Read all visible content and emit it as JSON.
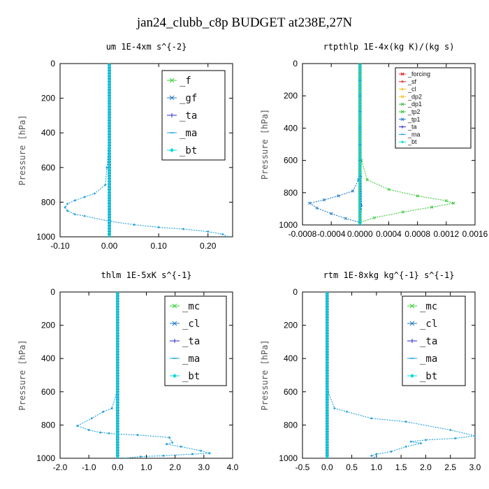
{
  "figure_title": "jan24_clubb_c8p  BUDGET at238E,27N",
  "chart_data": [
    {
      "type": "line",
      "title": "um   1E-4xm s^{-2}",
      "ylabel": "Pressure [hPa]",
      "xlim": [
        -0.1,
        0.25
      ],
      "ylim": [
        1000,
        0
      ],
      "xticks": [
        -0.1,
        0.0,
        0.1,
        0.2
      ],
      "xtick_labels": [
        "-0.10",
        "0.00",
        "0.10",
        "0.20"
      ],
      "yticks": [
        0,
        200,
        400,
        600,
        800,
        1000
      ],
      "legend": {
        "placement": "top-right",
        "small": false
      },
      "series": [
        {
          "name": "_f",
          "color": "#3cd23c",
          "marker": "x",
          "x": [
            0,
            0,
            0,
            0,
            0,
            0,
            0,
            0,
            0,
            0,
            0
          ],
          "y": [
            0,
            100,
            200,
            300,
            400,
            500,
            600,
            700,
            800,
            900,
            1000
          ]
        },
        {
          "name": "_gf",
          "color": "#1e78c8",
          "marker": "x",
          "x": [
            0,
            0,
            0,
            0,
            0,
            0,
            0,
            0,
            0,
            0,
            0
          ],
          "y": [
            0,
            100,
            200,
            300,
            400,
            500,
            600,
            700,
            800,
            900,
            1000
          ]
        },
        {
          "name": "_ta",
          "color": "#2828d2",
          "marker": "+",
          "x": [
            0,
            0,
            0,
            0,
            0,
            0,
            0,
            0,
            0,
            0,
            0
          ],
          "y": [
            0,
            100,
            200,
            300,
            400,
            500,
            600,
            700,
            800,
            900,
            1000
          ]
        },
        {
          "name": "_ma",
          "color": "#1ea0dc",
          "marker": "-",
          "x": [
            0,
            0,
            0,
            0,
            0,
            -0.002,
            -0.005,
            -0.008,
            -0.03,
            -0.05,
            -0.07,
            -0.085,
            -0.09,
            -0.085,
            -0.07,
            -0.05,
            0.0,
            0.05,
            0.1,
            0.15,
            0.2,
            0.23,
            0.24
          ],
          "y": [
            0,
            100,
            200,
            300,
            400,
            500,
            600,
            700,
            750,
            770,
            790,
            810,
            830,
            850,
            870,
            880,
            910,
            930,
            945,
            955,
            970,
            985,
            1000
          ]
        },
        {
          "name": "_bt",
          "color": "#00dcdc",
          "marker": "diamond",
          "x": [
            0,
            0,
            0,
            0,
            0,
            0,
            0,
            0,
            0,
            0,
            0
          ],
          "y": [
            0,
            100,
            200,
            300,
            400,
            500,
            600,
            700,
            800,
            900,
            1000
          ]
        }
      ]
    },
    {
      "type": "line",
      "title": "rtpthlp   1E-4x(kg K)/(kg s)",
      "ylabel": "Pressure [hPa]",
      "xlim": [
        -0.0008,
        0.0016
      ],
      "ylim": [
        1000,
        0
      ],
      "xticks": [
        -0.0008,
        -0.0004,
        0.0,
        0.0004,
        0.0008,
        0.0012,
        0.0016
      ],
      "xtick_labels": [
        "-0.0008",
        "-0.0004",
        "0.0000",
        "0.0004",
        "0.0008",
        "0.0012",
        "0.0016"
      ],
      "yticks": [
        0,
        200,
        400,
        600,
        800,
        1000
      ],
      "legend": {
        "placement": "top-right",
        "small": true
      },
      "series": [
        {
          "name": "_forcing",
          "color": "#e02020",
          "marker": "x",
          "x": [
            0,
            0,
            0,
            0,
            0,
            0,
            0,
            0,
            0,
            0,
            0
          ],
          "y": [
            0,
            100,
            200,
            300,
            400,
            500,
            600,
            700,
            800,
            900,
            1000
          ]
        },
        {
          "name": "_sf",
          "color": "#e02020",
          "marker": "+",
          "x": [
            0,
            0,
            0,
            0,
            0,
            0,
            0,
            0,
            0,
            0,
            0
          ],
          "y": [
            0,
            100,
            200,
            300,
            400,
            500,
            600,
            700,
            800,
            900,
            1000
          ]
        },
        {
          "name": "_cl",
          "color": "#f0b400",
          "marker": "+",
          "x": [
            0,
            0,
            0,
            0,
            0,
            0,
            0,
            0,
            0,
            0,
            0
          ],
          "y": [
            0,
            100,
            200,
            300,
            400,
            500,
            600,
            700,
            800,
            900,
            1000
          ]
        },
        {
          "name": "_dp2",
          "color": "#f0c83c",
          "marker": "x",
          "x": [
            0,
            0,
            0,
            0,
            0,
            0,
            0,
            0,
            0,
            0,
            0
          ],
          "y": [
            0,
            100,
            200,
            300,
            400,
            500,
            600,
            700,
            800,
            900,
            1000
          ]
        },
        {
          "name": "_dp1",
          "color": "#50b450",
          "marker": "x",
          "x": [
            0,
            0,
            0,
            0,
            0,
            0,
            0,
            0,
            0,
            0,
            0
          ],
          "y": [
            0,
            100,
            200,
            300,
            400,
            500,
            600,
            700,
            800,
            900,
            1000
          ]
        },
        {
          "name": "_tp2",
          "color": "#3cc83c",
          "marker": "x",
          "x": [
            0,
            0,
            0,
            0,
            0,
            0,
            2e-05,
            0.0001,
            0.0004,
            0.0008,
            0.0012,
            0.0013,
            0.001,
            0.0006,
            0.0002,
            0.0
          ],
          "y": [
            0,
            100,
            200,
            300,
            400,
            500,
            600,
            720,
            780,
            820,
            850,
            865,
            890,
            920,
            955,
            985
          ]
        },
        {
          "name": "_tp1",
          "color": "#1e78c8",
          "marker": "x",
          "x": [
            0,
            0,
            0,
            0,
            0,
            0,
            0,
            -2e-05,
            -0.0001,
            -0.0003,
            -0.0005,
            -0.0007,
            -0.0006,
            -0.0004,
            -0.0002,
            0.0
          ],
          "y": [
            0,
            100,
            200,
            300,
            400,
            500,
            600,
            720,
            790,
            820,
            845,
            865,
            895,
            930,
            960,
            985
          ]
        },
        {
          "name": "_ta",
          "color": "#2828d2",
          "marker": "+",
          "x": [
            0,
            0,
            0,
            0,
            0,
            0,
            0,
            1e-05,
            2e-05,
            1e-05,
            0.0
          ],
          "y": [
            0,
            100,
            200,
            300,
            400,
            500,
            600,
            700,
            880,
            900,
            1000
          ]
        },
        {
          "name": "_ma",
          "color": "#1ea0dc",
          "marker": "-",
          "x": [
            0,
            0,
            0,
            0,
            0,
            0,
            0,
            0,
            0,
            0,
            0
          ],
          "y": [
            0,
            100,
            200,
            300,
            400,
            500,
            600,
            700,
            800,
            900,
            1000
          ]
        },
        {
          "name": "_bt",
          "color": "#00dcdc",
          "marker": "diamond",
          "x": [
            0,
            0,
            0,
            0,
            0,
            0,
            0,
            0,
            0,
            0,
            0
          ],
          "y": [
            0,
            100,
            200,
            300,
            400,
            500,
            600,
            700,
            800,
            900,
            1000
          ]
        }
      ]
    },
    {
      "type": "line",
      "title": "thlm   1E-5xK s^{-1}",
      "ylabel": "Pressure [hPa]",
      "xlim": [
        -2.0,
        4.0
      ],
      "ylim": [
        1000,
        0
      ],
      "xticks": [
        -2.0,
        -1.0,
        0.0,
        1.0,
        2.0,
        3.0,
        4.0
      ],
      "xtick_labels": [
        "-2.0",
        "-1.0",
        "0.0",
        "1.0",
        "2.0",
        "3.0",
        "4.0"
      ],
      "yticks": [
        0,
        200,
        400,
        600,
        800,
        1000
      ],
      "legend": {
        "placement": "top-right",
        "small": false
      },
      "series": [
        {
          "name": "_mc",
          "color": "#3cd23c",
          "marker": "x",
          "x": [
            0,
            0,
            0,
            0,
            0,
            0,
            0,
            0,
            0,
            0,
            0
          ],
          "y": [
            0,
            100,
            200,
            300,
            400,
            500,
            600,
            700,
            800,
            900,
            1000
          ]
        },
        {
          "name": "_cl",
          "color": "#1e78c8",
          "marker": "x",
          "x": [
            0,
            0,
            0,
            0,
            0,
            0,
            0,
            0,
            0,
            0,
            0
          ],
          "y": [
            0,
            100,
            200,
            300,
            400,
            500,
            600,
            700,
            800,
            900,
            1000
          ]
        },
        {
          "name": "_ta",
          "color": "#2828d2",
          "marker": "+",
          "x": [
            0,
            0,
            0,
            0,
            0,
            0,
            0,
            0,
            0,
            0,
            0
          ],
          "y": [
            0,
            100,
            200,
            300,
            400,
            500,
            600,
            700,
            800,
            900,
            1000
          ]
        },
        {
          "name": "_ma",
          "color": "#1ea0dc",
          "marker": "-",
          "x": [
            0,
            0,
            0,
            0,
            0,
            0,
            -0.02,
            -0.2,
            -0.5,
            -0.9,
            -1.4,
            -1.0,
            -0.6,
            -0.3,
            0.0,
            0.7,
            1.8,
            1.9,
            1.7,
            2.2,
            2.9,
            3.2,
            2.6,
            1.6,
            0.8,
            0.2
          ],
          "y": [
            0,
            100,
            200,
            300,
            400,
            500,
            600,
            700,
            720,
            760,
            805,
            830,
            845,
            850,
            855,
            860,
            875,
            905,
            915,
            930,
            955,
            970,
            975,
            985,
            990,
            1000
          ]
        },
        {
          "name": "_bt",
          "color": "#00dcdc",
          "marker": "diamond",
          "x": [
            0,
            0,
            0,
            0,
            0,
            0,
            0,
            0,
            0,
            0,
            0
          ],
          "y": [
            0,
            100,
            200,
            300,
            400,
            500,
            600,
            700,
            800,
            900,
            1000
          ]
        }
      ]
    },
    {
      "type": "line",
      "title": "rtm   1E-8xkg kg^{-1} s^{-1}",
      "ylabel": "Pressure [hPa]",
      "xlim": [
        -0.5,
        3.0
      ],
      "ylim": [
        1000,
        0
      ],
      "xticks": [
        -0.5,
        0.0,
        0.5,
        1.0,
        1.5,
        2.0,
        2.5,
        3.0
      ],
      "xtick_labels": [
        "-0.5",
        "0.0",
        "0.5",
        "1.0",
        "1.5",
        "2.0",
        "2.5",
        "3.0"
      ],
      "yticks": [
        0,
        200,
        400,
        600,
        800,
        1000
      ],
      "legend": {
        "placement": "top-right",
        "small": false
      },
      "series": [
        {
          "name": "_mc",
          "color": "#3cd23c",
          "marker": "x",
          "x": [
            0,
            0,
            0,
            0,
            0,
            0,
            0,
            0,
            0,
            0,
            0
          ],
          "y": [
            0,
            100,
            200,
            300,
            400,
            500,
            600,
            700,
            800,
            900,
            1000
          ]
        },
        {
          "name": "_cl",
          "color": "#1e78c8",
          "marker": "x",
          "x": [
            0,
            0,
            0,
            0,
            0,
            0,
            0,
            0,
            0,
            0,
            0
          ],
          "y": [
            0,
            100,
            200,
            300,
            400,
            500,
            600,
            700,
            800,
            900,
            1000
          ]
        },
        {
          "name": "_ta",
          "color": "#2828d2",
          "marker": "+",
          "x": [
            0,
            0,
            0,
            0,
            0,
            0,
            0,
            0,
            0,
            0,
            0
          ],
          "y": [
            0,
            100,
            200,
            300,
            400,
            500,
            600,
            700,
            800,
            900,
            1000
          ]
        },
        {
          "name": "_ma",
          "color": "#1ea0dc",
          "marker": "-",
          "x": [
            0,
            0,
            0,
            0,
            0,
            0,
            0.02,
            0.15,
            0.4,
            0.9,
            1.6,
            2.5,
            3.0,
            2.6,
            2.0,
            1.7,
            1.9,
            1.6,
            1.3,
            1.0,
            0.9,
            1.0
          ],
          "y": [
            0,
            100,
            200,
            300,
            400,
            500,
            600,
            700,
            720,
            760,
            780,
            830,
            865,
            880,
            890,
            900,
            910,
            930,
            960,
            975,
            985,
            1000
          ]
        },
        {
          "name": "_bt",
          "color": "#00dcdc",
          "marker": "diamond",
          "x": [
            0,
            0,
            0,
            0,
            0,
            0,
            0,
            0,
            0,
            0,
            0
          ],
          "y": [
            0,
            100,
            200,
            300,
            400,
            500,
            600,
            700,
            800,
            900,
            1000
          ]
        }
      ]
    }
  ]
}
